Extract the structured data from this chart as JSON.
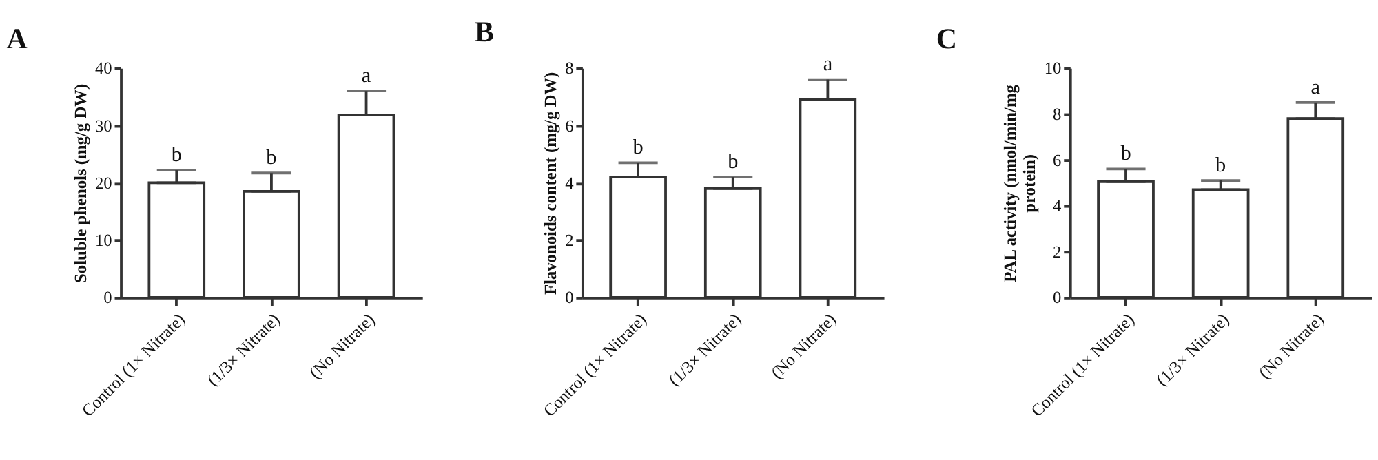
{
  "chart_data": [
    {
      "type": "bar",
      "title": "A",
      "ylabel": "Soluble phenols (mg/g DW)",
      "categories": [
        "Control (1× Nitrate)",
        "(1/3× Nitrate)",
        "(No Nitrate)"
      ],
      "values": [
        20,
        18.5,
        31.8
      ],
      "errors": [
        [
          20,
          22.2
        ],
        [
          18.5,
          21.7
        ],
        [
          31.8,
          36
        ]
      ],
      "color": "#ffffff",
      "ylim": [
        0,
        40
      ],
      "yticks": [
        0,
        10,
        20,
        30,
        40
      ],
      "grid": false,
      "annotations": [
        {
          "text": "b",
          "x": "Control (1× Nitrate)",
          "y": 22.2
        },
        {
          "text": "b",
          "x": "(1/3× Nitrate)",
          "y": 21.7
        },
        {
          "text": "a",
          "x": "(No Nitrate)",
          "y": 36
        }
      ]
    },
    {
      "type": "bar",
      "title": "B",
      "ylabel": "Flavonoids content (mg/g DW)",
      "categories": [
        "Control (1× Nitrate)",
        "(1/3× Nitrate)",
        "(No Nitrate)"
      ],
      "values": [
        4.2,
        3.8,
        6.9
      ],
      "errors": [
        [
          4.2,
          4.7
        ],
        [
          3.8,
          4.2
        ],
        [
          6.9,
          7.6
        ]
      ],
      "color": "#ffffff",
      "ylim": [
        0,
        8
      ],
      "yticks": [
        0,
        2,
        4,
        6,
        8
      ],
      "grid": false,
      "annotations": [
        {
          "text": "b",
          "x": "Control (1× Nitrate)",
          "y": 4.7
        },
        {
          "text": "b",
          "x": "(1/3× Nitrate)",
          "y": 4.2
        },
        {
          "text": "a",
          "x": "(No Nitrate)",
          "y": 7.6
        }
      ]
    },
    {
      "type": "bar",
      "title": "C",
      "ylabel": "PAL activity (nmol/min/mg protein)",
      "categories": [
        "Control (1× Nitrate)",
        "(1/3× Nitrate)",
        "(No Nitrate)"
      ],
      "values": [
        5.05,
        4.7,
        7.8
      ],
      "errors": [
        [
          5.05,
          5.6
        ],
        [
          4.7,
          5.1
        ],
        [
          7.8,
          8.5
        ]
      ],
      "color": "#ffffff",
      "ylim": [
        0,
        10
      ],
      "yticks": [
        0,
        2,
        4,
        6,
        8,
        10
      ],
      "grid": false,
      "annotations": [
        {
          "text": "b",
          "x": "Control (1× Nitrate)",
          "y": 5.6
        },
        {
          "text": "b",
          "x": "(1/3× Nitrate)",
          "y": 5.1
        },
        {
          "text": "a",
          "x": "(No Nitrate)",
          "y": 8.5
        }
      ]
    }
  ]
}
